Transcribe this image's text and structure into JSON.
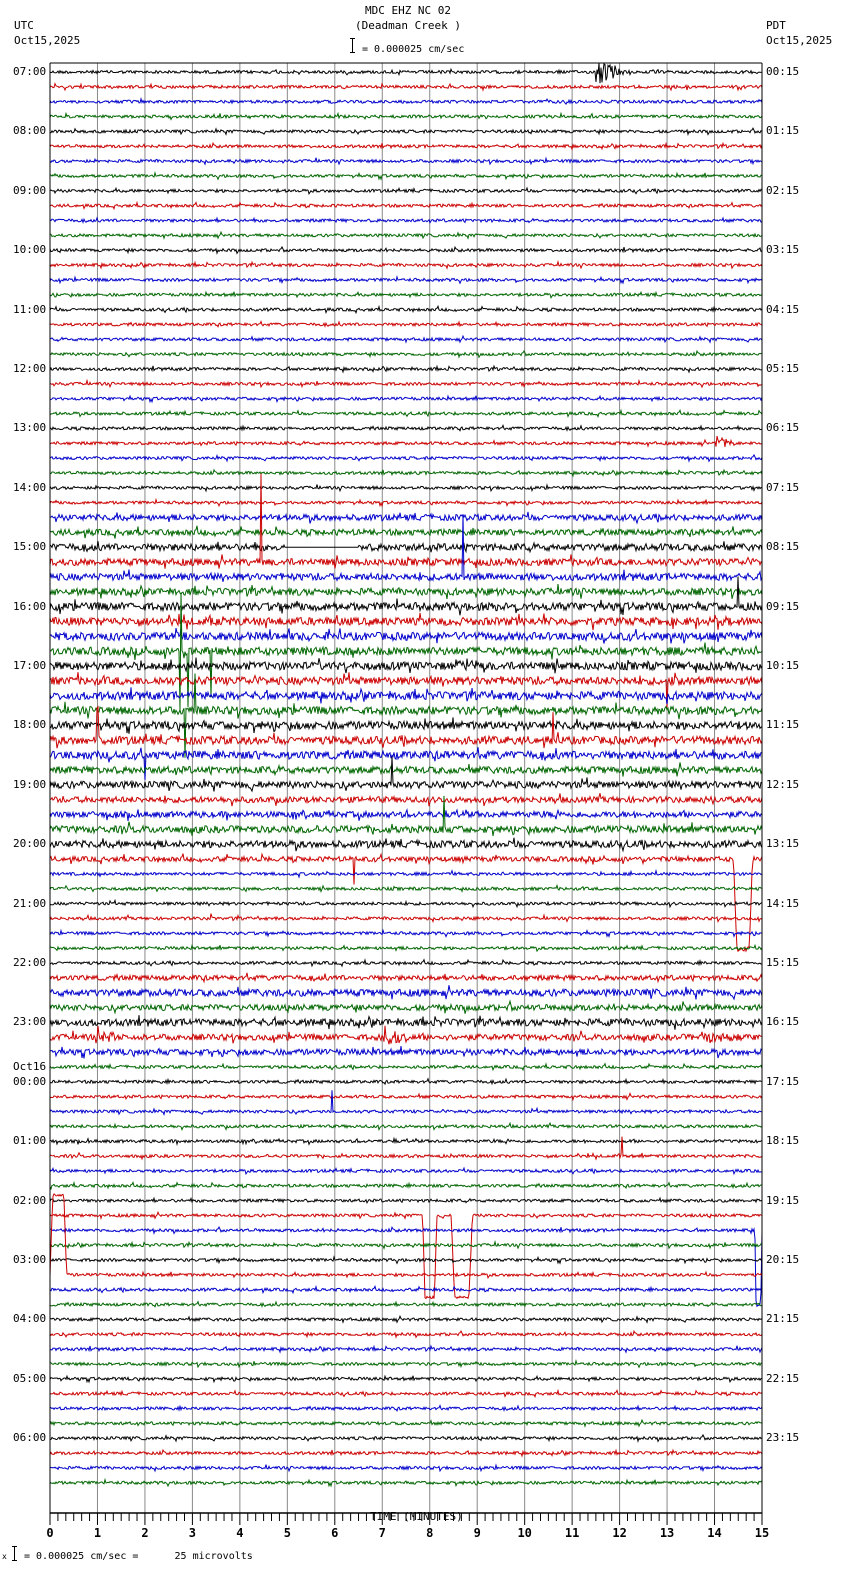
{
  "header": {
    "station": "MDC EHZ NC 02",
    "location": "(Deadman Creek )",
    "scale": "= 0.000025 cm/sec",
    "left_tz": "UTC",
    "left_date": "Oct15,2025",
    "right_tz": "PDT",
    "right_date": "Oct15,2025"
  },
  "footer": {
    "scale_note": "= 0.000025 cm/sec =      25 microvolts",
    "scale_prefix": "x"
  },
  "chart_data": {
    "type": "line",
    "title": "MDC EHZ NC 02 (Deadman Creek )",
    "subtitle": "= 0.000025 cm/sec",
    "xlabel": "TIME (MINUTES)",
    "ylabel": "",
    "xlim": [
      0,
      15
    ],
    "x_ticks": [
      0,
      1,
      2,
      3,
      4,
      5,
      6,
      7,
      8,
      9,
      10,
      11,
      12,
      13,
      14,
      15
    ],
    "grid": true,
    "trace_colors": [
      "#000000",
      "#cc0000",
      "#0000cc",
      "#006600"
    ],
    "traces_per_hour": 4,
    "trace_count": 96,
    "left_labels_utc": [
      {
        "row": 0,
        "text": "07:00"
      },
      {
        "row": 4,
        "text": "08:00"
      },
      {
        "row": 8,
        "text": "09:00"
      },
      {
        "row": 12,
        "text": "10:00"
      },
      {
        "row": 16,
        "text": "11:00"
      },
      {
        "row": 20,
        "text": "12:00"
      },
      {
        "row": 24,
        "text": "13:00"
      },
      {
        "row": 28,
        "text": "14:00"
      },
      {
        "row": 32,
        "text": "15:00"
      },
      {
        "row": 36,
        "text": "16:00"
      },
      {
        "row": 40,
        "text": "17:00"
      },
      {
        "row": 44,
        "text": "18:00"
      },
      {
        "row": 48,
        "text": "19:00"
      },
      {
        "row": 52,
        "text": "20:00"
      },
      {
        "row": 56,
        "text": "21:00"
      },
      {
        "row": 60,
        "text": "22:00"
      },
      {
        "row": 64,
        "text": "23:00"
      },
      {
        "row": 68,
        "text": "00:00",
        "date": "Oct16"
      },
      {
        "row": 72,
        "text": "01:00"
      },
      {
        "row": 76,
        "text": "02:00"
      },
      {
        "row": 80,
        "text": "03:00"
      },
      {
        "row": 84,
        "text": "04:00"
      },
      {
        "row": 88,
        "text": "05:00"
      },
      {
        "row": 92,
        "text": "06:00"
      }
    ],
    "right_labels_pdt": [
      {
        "row": 0,
        "text": "00:15"
      },
      {
        "row": 4,
        "text": "01:15"
      },
      {
        "row": 8,
        "text": "02:15"
      },
      {
        "row": 12,
        "text": "03:15"
      },
      {
        "row": 16,
        "text": "04:15"
      },
      {
        "row": 20,
        "text": "05:15"
      },
      {
        "row": 24,
        "text": "06:15"
      },
      {
        "row": 28,
        "text": "07:15"
      },
      {
        "row": 32,
        "text": "08:15"
      },
      {
        "row": 36,
        "text": "09:15"
      },
      {
        "row": 40,
        "text": "10:15"
      },
      {
        "row": 44,
        "text": "11:15"
      },
      {
        "row": 48,
        "text": "12:15"
      },
      {
        "row": 52,
        "text": "13:15"
      },
      {
        "row": 56,
        "text": "14:15"
      },
      {
        "row": 60,
        "text": "15:15"
      },
      {
        "row": 64,
        "text": "16:15"
      },
      {
        "row": 68,
        "text": "17:15"
      },
      {
        "row": 72,
        "text": "18:15"
      },
      {
        "row": 76,
        "text": "19:15"
      },
      {
        "row": 80,
        "text": "20:15"
      },
      {
        "row": 84,
        "text": "21:15"
      },
      {
        "row": 88,
        "text": "22:15"
      },
      {
        "row": 92,
        "text": "23:15"
      }
    ],
    "noise_levels": {
      "default": 1.5,
      "rows": {
        "30": 3,
        "31": 3,
        "32": 3.5,
        "33": 3.5,
        "34": 3.5,
        "35": 3.5,
        "36": 4,
        "37": 4,
        "38": 4,
        "39": 4,
        "40": 4,
        "41": 4,
        "42": 4,
        "43": 4,
        "44": 4,
        "45": 4,
        "46": 4,
        "47": 3.5,
        "48": 3.5,
        "49": 3,
        "50": 3,
        "51": 3.5,
        "52": 3.5,
        "53": 2.5,
        "61": 2.5,
        "62": 3.5,
        "63": 3,
        "64": 3.5,
        "65": 3,
        "66": 3
      }
    },
    "events": [
      {
        "row": 0,
        "minute": 11.5,
        "duration": 0.7,
        "amp": 14,
        "type": "quake"
      },
      {
        "row": 25,
        "minute": 14.0,
        "duration": 0.5,
        "amp": 8,
        "type": "quake"
      },
      {
        "row": 40,
        "minute": 8.5,
        "duration": 0.8,
        "amp": 7,
        "type": "quake"
      },
      {
        "row": 65,
        "minute": 1.0,
        "duration": 0.6,
        "amp": 9,
        "type": "quake"
      },
      {
        "row": 65,
        "minute": 7.0,
        "duration": 0.7,
        "amp": 12,
        "type": "quake"
      },
      {
        "row": 65,
        "minute": 13.7,
        "duration": 1.0,
        "amp": 5,
        "type": "quake"
      },
      {
        "row": 66,
        "minute": 3.3,
        "duration": 0.3,
        "amp": 5,
        "type": "quake"
      },
      {
        "row": 33,
        "minute": 4.45,
        "amp": 85,
        "type": "spike"
      },
      {
        "row": 34,
        "minute": 8.7,
        "amp": 60,
        "type": "spike"
      },
      {
        "row": 39,
        "minute": 2.75,
        "amp": 60,
        "type": "spike"
      },
      {
        "row": 39,
        "minute": 2.9,
        "amp": 55,
        "type": "spike"
      },
      {
        "row": 39,
        "minute": 3.4,
        "amp": 50,
        "type": "spike"
      },
      {
        "row": 43,
        "minute": 2.85,
        "amp": 45,
        "type": "spike"
      },
      {
        "row": 43,
        "minute": 3.05,
        "amp": 40,
        "type": "spike"
      },
      {
        "row": 45,
        "minute": 1.0,
        "amp": 35,
        "type": "spike"
      },
      {
        "row": 46,
        "minute": 2.0,
        "amp": 25,
        "type": "spike"
      },
      {
        "row": 48,
        "minute": 7.2,
        "amp": 25,
        "type": "spike"
      },
      {
        "row": 51,
        "minute": 8.3,
        "amp": 30,
        "type": "spike"
      },
      {
        "row": 53,
        "minute": 6.4,
        "amp": 25,
        "type": "spike"
      },
      {
        "row": 41,
        "minute": 13.0,
        "amp": 25,
        "type": "spike"
      },
      {
        "row": 36,
        "minute": 14.5,
        "amp": 30,
        "type": "spike"
      },
      {
        "row": 45,
        "minute": 10.6,
        "amp": 30,
        "type": "spike"
      },
      {
        "row": 70,
        "minute": 5.95,
        "amp": 20,
        "type": "spike"
      },
      {
        "row": 73,
        "minute": 12.05,
        "amp": 20,
        "type": "spike"
      },
      {
        "row": 57,
        "minute": 3.4,
        "amp": 6,
        "type": "spike"
      }
    ],
    "offsets": [
      {
        "row": 77,
        "color_index": 1,
        "start_minute": 7.85,
        "end_minute": 8.15,
        "depth": 82
      },
      {
        "row": 77,
        "color_index": 1,
        "start_minute": 8.45,
        "end_minute": 8.9,
        "depth": 82
      },
      {
        "row": 53,
        "color_index": 1,
        "start_minute": 14.4,
        "end_minute": 14.8,
        "depth": 90
      },
      {
        "row": 81,
        "color_index": 3,
        "start_minute": 0.0,
        "end_minute": 0.35,
        "depth": -80
      },
      {
        "row": 78,
        "color_index": 2,
        "start_minute": 14.85,
        "end_minute": 15.0,
        "depth": 75
      }
    ],
    "gaps": [
      {
        "row": 32,
        "start_minute": 4.95,
        "end_minute": 6.5
      }
    ]
  }
}
